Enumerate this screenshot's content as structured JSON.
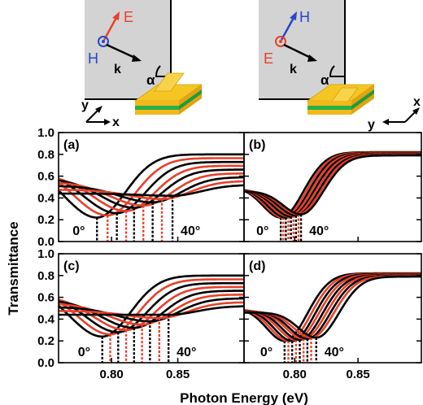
{
  "figure": {
    "ylabel": "Transmittance",
    "xlabel": "Photon Energy (eV)",
    "x_ticks": [
      "0.80",
      "0.85"
    ],
    "y_ticks": [
      "0.0",
      "0.2",
      "0.4",
      "0.6",
      "0.8",
      "1.0"
    ]
  },
  "insets": [
    {
      "id": "left",
      "labels": {
        "field_a": "E",
        "field_b": "H",
        "wavevector": "k",
        "angle": "α",
        "axis_1": "y",
        "axis_2": "x"
      },
      "colors": {
        "field_a": "#e8402a",
        "field_b": "#2a46c8"
      }
    },
    {
      "id": "right",
      "labels": {
        "field_a": "H",
        "field_b": "E",
        "wavevector": "k",
        "angle": "α",
        "axis_1": "y",
        "axis_2": "x"
      },
      "colors": {
        "field_a": "#2a46c8",
        "field_b": "#e8402a"
      }
    }
  ],
  "chart_data": [
    {
      "panel": "(a)",
      "type": "line",
      "xlim": [
        0.76,
        0.9
      ],
      "ylim": [
        0,
        1.0
      ],
      "angle_start": "0°",
      "angle_end": "40°",
      "series_colors": [
        "#000000",
        "#e8402a",
        "#000000",
        "#e8402a",
        "#000000",
        "#e8402a",
        "#000000",
        "#e8402a",
        "#000000"
      ],
      "minima_x": [
        0.789,
        0.797,
        0.804,
        0.811,
        0.817,
        0.824,
        0.831,
        0.838,
        0.846
      ],
      "minima_y": [
        0.22,
        0.24,
        0.26,
        0.28,
        0.31,
        0.33,
        0.36,
        0.39,
        0.42
      ]
    },
    {
      "panel": "(b)",
      "type": "line",
      "xlim": [
        0.76,
        0.9
      ],
      "ylim": [
        0,
        1.0
      ],
      "angle_start": "0°",
      "angle_end": "40°",
      "series_colors": [
        "#000000",
        "#e8402a",
        "#000000",
        "#e8402a",
        "#000000",
        "#e8402a",
        "#000000",
        "#e8402a",
        "#000000"
      ],
      "minima_x": [
        0.789,
        0.791,
        0.793,
        0.795,
        0.797,
        0.799,
        0.801,
        0.803,
        0.805
      ],
      "minima_y": [
        0.22,
        0.22,
        0.22,
        0.23,
        0.23,
        0.24,
        0.24,
        0.25,
        0.25
      ]
    },
    {
      "panel": "(c)",
      "type": "line",
      "xlim": [
        0.76,
        0.9
      ],
      "ylim": [
        0,
        1.0
      ],
      "angle_start": "0°",
      "angle_end": "40°",
      "series_colors": [
        "#000000",
        "#e8402a",
        "#000000",
        "#e8402a",
        "#000000",
        "#e8402a",
        "#000000",
        "#e8402a",
        "#000000"
      ],
      "minima_x": [
        0.793,
        0.799,
        0.805,
        0.811,
        0.817,
        0.823,
        0.829,
        0.836,
        0.843
      ],
      "minima_y": [
        0.24,
        0.26,
        0.28,
        0.3,
        0.32,
        0.35,
        0.38,
        0.41,
        0.44
      ]
    },
    {
      "panel": "(d)",
      "type": "line",
      "xlim": [
        0.76,
        0.9
      ],
      "ylim": [
        0,
        1.0
      ],
      "angle_start": "0°",
      "angle_end": "40°",
      "series_colors": [
        "#000000",
        "#e8402a",
        "#000000",
        "#e8402a",
        "#000000",
        "#e8402a",
        "#000000",
        "#e8402a",
        "#000000"
      ],
      "minima_x": [
        0.792,
        0.795,
        0.798,
        0.801,
        0.804,
        0.807,
        0.81,
        0.813,
        0.817
      ],
      "minima_y": [
        0.2,
        0.2,
        0.2,
        0.21,
        0.21,
        0.22,
        0.22,
        0.23,
        0.23
      ]
    }
  ]
}
